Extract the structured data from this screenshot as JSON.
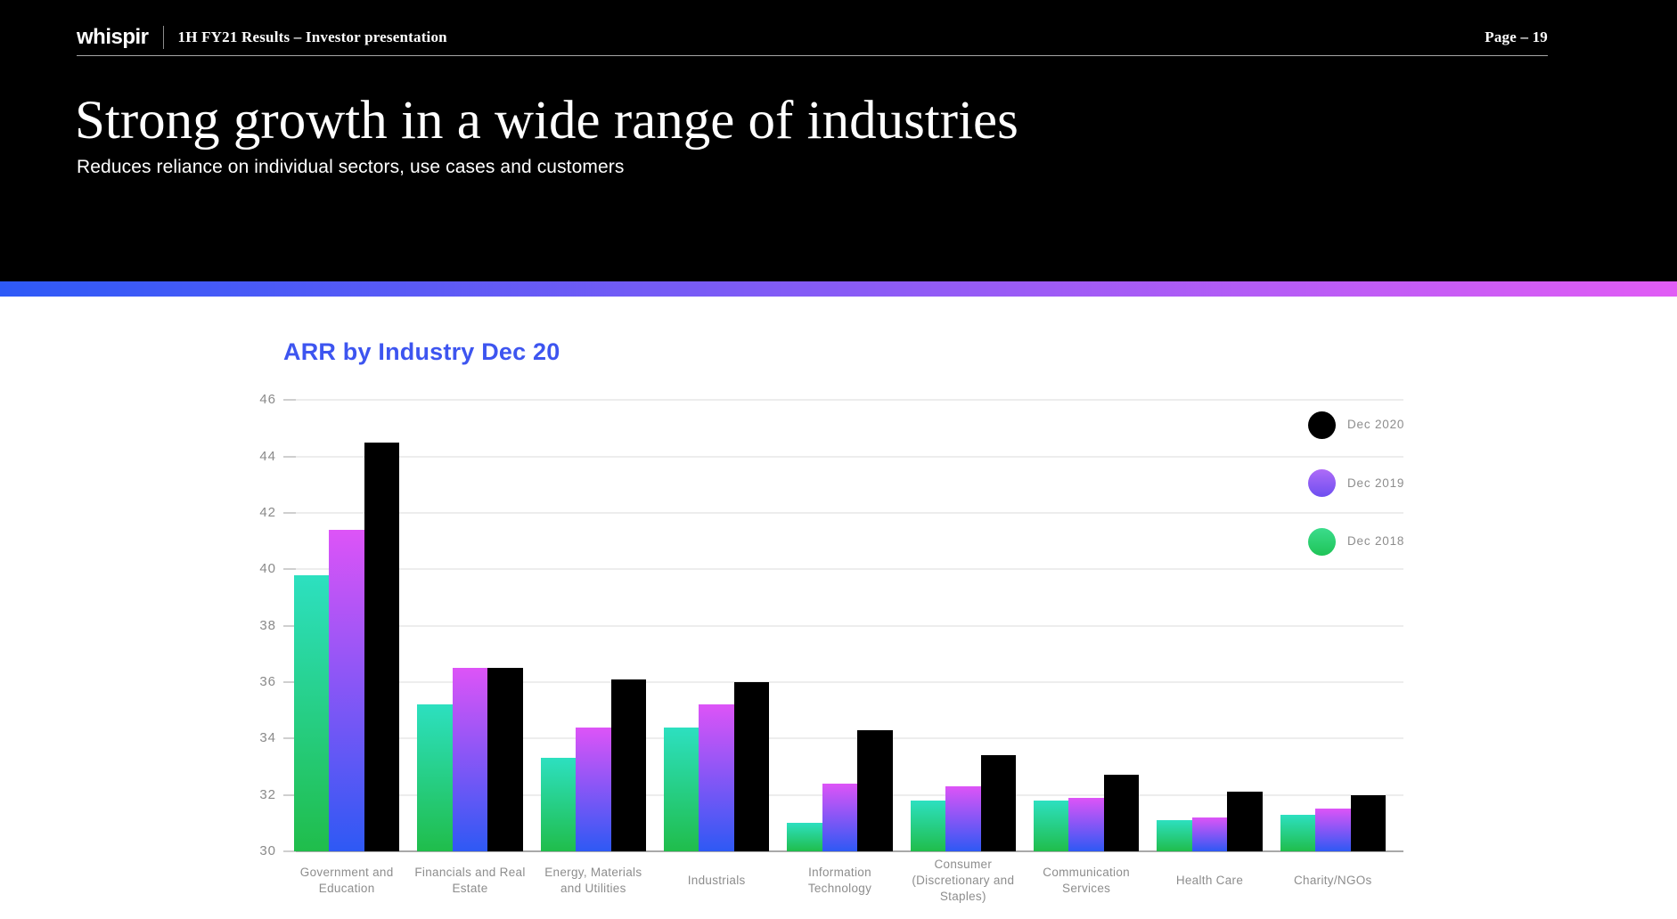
{
  "header": {
    "logo_text": "whispir",
    "doc_title": "1H FY21 Results – Investor presentation",
    "page_label": "Page – 19",
    "slide_title": "Strong growth in a wide range of industries",
    "slide_subtitle": "Reduces reliance on individual sectors, use cases and customers"
  },
  "accent_bar": {
    "left_color": "#2E5AF7",
    "right_color": "#E15CF5"
  },
  "chart_data": {
    "type": "bar",
    "title": "ARR by Industry Dec 20",
    "title_color": "#3D55F0",
    "categories": [
      "Government and Education",
      "Financials and Real Estate",
      "Energy, Materials and Utilities",
      "Industrials",
      "Information Technology",
      "Consumer (Discretionary and Staples)",
      "Communication Services",
      "Health Care",
      "Charity/NGOs"
    ],
    "series": [
      {
        "name": "Dec 2018",
        "values": [
          39.8,
          35.2,
          33.3,
          34.4,
          31.0,
          31.8,
          31.8,
          31.1,
          31.3
        ],
        "bar_gradient_top": "#2DE0C0",
        "bar_gradient_bottom": "#20BD4B",
        "legend_gradient_top": "#3BDC8C",
        "legend_gradient_bottom": "#1FC457"
      },
      {
        "name": "Dec 2019",
        "values": [
          41.4,
          36.5,
          34.4,
          35.2,
          32.4,
          32.3,
          31.9,
          31.2,
          31.5
        ],
        "bar_gradient_top": "#DD54F7",
        "bar_gradient_bottom": "#2E59F4",
        "legend_gradient_top": "#AE6BF7",
        "legend_gradient_bottom": "#6E4FF0"
      },
      {
        "name": "Dec 2020",
        "values": [
          44.5,
          36.5,
          36.1,
          36.0,
          34.3,
          33.4,
          32.7,
          32.1,
          32.0
        ],
        "bar_gradient_top": "#000000",
        "bar_gradient_bottom": "#000000",
        "legend_gradient_top": "#000000",
        "legend_gradient_bottom": "#000000"
      }
    ],
    "legend_order": [
      "Dec 2020",
      "Dec 2019",
      "Dec 2018"
    ],
    "legend_position": "top-right",
    "ylim": [
      30,
      46
    ],
    "ytick_step": 2,
    "grid": true,
    "xlabel": "",
    "ylabel": ""
  }
}
